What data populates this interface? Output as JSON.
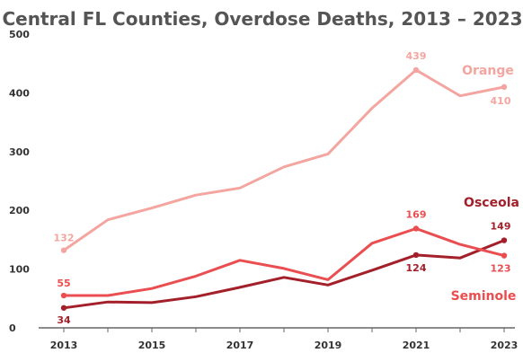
{
  "chart_data": {
    "type": "line",
    "title": "Central FL Counties, Overdose Deaths, 2013 – 2023",
    "xlabel": "",
    "ylabel": "",
    "x": [
      2013,
      2014,
      2015,
      2016,
      2017,
      2018,
      2019,
      2020,
      2021,
      2022,
      2023
    ],
    "x_ticks": [
      "2013",
      "2015",
      "2017",
      "2019",
      "2021",
      "2023"
    ],
    "ylim": [
      0,
      500
    ],
    "y_ticks": [
      "0",
      "100",
      "200",
      "300",
      "400",
      "500"
    ],
    "grid": false,
    "legend": "none",
    "series": [
      {
        "name": "Orange",
        "color": "#f4a5a0",
        "values": [
          132,
          184,
          204,
          226,
          238,
          274,
          296,
          374,
          439,
          395,
          410
        ],
        "data_labels": [
          {
            "index": 0,
            "text": "132"
          },
          {
            "index": 8,
            "text": "439"
          },
          {
            "index": 10,
            "text": "410"
          }
        ]
      },
      {
        "name": "Osceola",
        "color": "#a3202a",
        "values": [
          34,
          44,
          43,
          53,
          69,
          86,
          73,
          98,
          124,
          119,
          149
        ],
        "data_labels": [
          {
            "index": 0,
            "text": "34"
          },
          {
            "index": 8,
            "text": "124"
          },
          {
            "index": 10,
            "text": "149"
          }
        ]
      },
      {
        "name": "Seminole",
        "color": "#ea4e50",
        "values": [
          55,
          55,
          67,
          88,
          115,
          101,
          82,
          144,
          169,
          142,
          123
        ],
        "data_labels": [
          {
            "index": 0,
            "text": "55"
          },
          {
            "index": 8,
            "text": "169"
          },
          {
            "index": 10,
            "text": "123"
          }
        ]
      }
    ]
  }
}
